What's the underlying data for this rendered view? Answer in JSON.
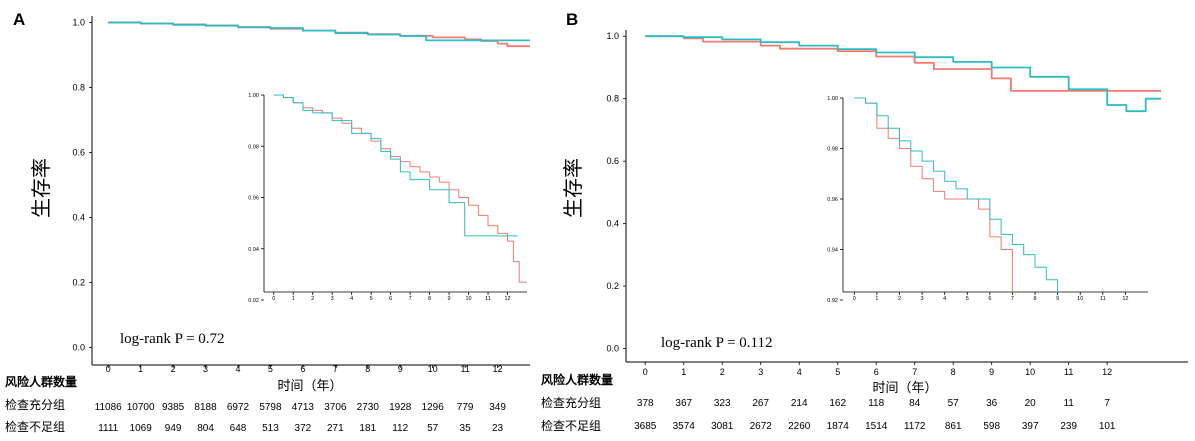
{
  "panels": [
    {
      "letter": "A",
      "y_label": "生存率",
      "x_label": "时间（年）",
      "p_value_text": "log-rank P = 0.72",
      "risk_title": "风险人群数量",
      "risk_labels": [
        "检查充分组",
        "检查不足组"
      ],
      "risk_times": [
        "0",
        "1",
        "2",
        "3",
        "4",
        "5",
        "6",
        "7",
        "8",
        "9",
        "10",
        "11",
        "12"
      ],
      "risk_counts": [
        [
          "11086",
          "10700",
          "9385",
          "8188",
          "6972",
          "5798",
          "4713",
          "3706",
          "2730",
          "1928",
          "1296",
          "779",
          "349"
        ],
        [
          "1111",
          "1069",
          "949",
          "804",
          "648",
          "513",
          "372",
          "271",
          "181",
          "112",
          "57",
          "35",
          "23"
        ]
      ]
    },
    {
      "letter": "B",
      "y_label": "生存率",
      "x_label": "时间（年）",
      "p_value_text": "log-rank P = 0.112",
      "risk_title": "风险人群数量",
      "risk_labels": [
        "检查充分组",
        "检查不足组"
      ],
      "risk_times": [
        "0",
        "1",
        "2",
        "3",
        "4",
        "5",
        "6",
        "7",
        "8",
        "9",
        "10",
        "11",
        "12"
      ],
      "risk_counts": [
        [
          "378",
          "367",
          "323",
          "267",
          "214",
          "162",
          "118",
          "84",
          "57",
          "36",
          "20",
          "11",
          "7"
        ],
        [
          "3685",
          "3574",
          "3081",
          "2672",
          "2260",
          "1874",
          "1514",
          "1172",
          "861",
          "598",
          "397",
          "239",
          "101"
        ]
      ]
    }
  ],
  "colors": {
    "red": "#f07b70",
    "teal": "#2dbcc4"
  },
  "chart_data": [
    {
      "type": "line",
      "step": true,
      "panel": "A main",
      "xlabel": "时间（年）",
      "ylabel": "生存率",
      "xlim": [
        -0.5,
        13
      ],
      "ylim": [
        0,
        1.02
      ],
      "xticks": [
        0,
        1,
        2,
        3,
        4,
        5,
        6,
        7,
        8,
        9,
        10,
        11,
        12
      ],
      "yticks": [
        0.0,
        0.2,
        0.4,
        0.6,
        0.8,
        1.0
      ],
      "ytick_labels": [
        "0.0",
        "0.2",
        "0.4",
        "0.6",
        "0.8",
        "1.0"
      ],
      "annotation": "log-rank P = 0.72",
      "series": [
        {
          "name": "red",
          "color": "#f07b70",
          "x": [
            0,
            1,
            2,
            3,
            4,
            5,
            6,
            7,
            8,
            9,
            10,
            11,
            11.5,
            12,
            12.3,
            13
          ],
          "y": [
            1.0,
            0.997,
            0.994,
            0.991,
            0.986,
            0.981,
            0.975,
            0.969,
            0.964,
            0.959,
            0.954,
            0.948,
            0.943,
            0.935,
            0.927,
            0.927
          ]
        },
        {
          "name": "teal",
          "color": "#2dbcc4",
          "x": [
            0,
            1,
            2,
            3,
            4,
            5,
            6,
            7,
            8,
            9,
            9.8,
            11,
            12,
            13
          ],
          "y": [
            1.0,
            0.997,
            0.993,
            0.99,
            0.985,
            0.983,
            0.975,
            0.967,
            0.963,
            0.958,
            0.945,
            0.945,
            0.945,
            0.945
          ]
        }
      ]
    },
    {
      "type": "line",
      "step": true,
      "panel": "A inset",
      "xlim": [
        -0.5,
        13
      ],
      "ylim": [
        0.92,
        1.0
      ],
      "xticks": [
        0,
        1,
        2,
        3,
        4,
        5,
        6,
        7,
        8,
        9,
        10,
        11,
        12
      ],
      "yticks": [
        0.92,
        0.94,
        0.96,
        0.98,
        1.0
      ],
      "ytick_labels": [
        "0.92",
        "0.94",
        "0.96",
        "0.98",
        "1.00"
      ],
      "series": [
        {
          "name": "red",
          "color": "#f07b70",
          "x": [
            0,
            0.5,
            1,
            1.5,
            2,
            2.5,
            3,
            3.5,
            4,
            4.5,
            5,
            5.5,
            6,
            6.5,
            7,
            7.5,
            8,
            8.5,
            9,
            9.5,
            10,
            10.5,
            11,
            11.5,
            12,
            12.3,
            12.6,
            13
          ],
          "y": [
            1.0,
            0.999,
            0.997,
            0.995,
            0.994,
            0.993,
            0.991,
            0.989,
            0.987,
            0.985,
            0.982,
            0.979,
            0.976,
            0.974,
            0.972,
            0.97,
            0.968,
            0.966,
            0.963,
            0.96,
            0.957,
            0.953,
            0.949,
            0.946,
            0.943,
            0.935,
            0.927,
            0.927
          ]
        },
        {
          "name": "teal",
          "color": "#2dbcc4",
          "x": [
            0,
            0.5,
            1,
            1.5,
            2,
            3,
            4,
            4.5,
            5,
            5.5,
            6,
            6.5,
            7,
            7.5,
            8,
            8.5,
            9,
            9.5,
            9.8,
            10,
            11,
            12,
            12.5
          ],
          "y": [
            1.0,
            0.999,
            0.997,
            0.994,
            0.993,
            0.99,
            0.985,
            0.985,
            0.983,
            0.978,
            0.975,
            0.97,
            0.967,
            0.967,
            0.963,
            0.963,
            0.958,
            0.958,
            0.945,
            0.945,
            0.945,
            0.945,
            0.945
          ]
        }
      ]
    },
    {
      "type": "line",
      "step": true,
      "panel": "B main",
      "xlabel": "时间（年）",
      "ylabel": "生存率",
      "xlim": [
        0,
        13.4
      ],
      "ylim": [
        0,
        1.02
      ],
      "xticks": [
        0,
        1,
        2,
        3,
        4,
        5,
        6,
        7,
        8,
        9,
        10,
        11,
        12
      ],
      "yticks": [
        0.0,
        0.2,
        0.4,
        0.6,
        0.8,
        1.0
      ],
      "ytick_labels": [
        "0.0",
        "0.2",
        "0.4",
        "0.6",
        "0.8",
        "1.0"
      ],
      "annotation": "log-rank P = 0.112",
      "series": [
        {
          "name": "red",
          "color": "#f07b70",
          "x": [
            0,
            1,
            1.5,
            3,
            3.5,
            5,
            6,
            7,
            7.5,
            9,
            9.5,
            13.4
          ],
          "y": [
            1.0,
            0.993,
            0.983,
            0.97,
            0.96,
            0.952,
            0.935,
            0.915,
            0.895,
            0.865,
            0.825,
            0.825
          ]
        },
        {
          "name": "teal",
          "color": "#2dbcc4",
          "x": [
            0,
            1,
            2,
            3,
            4,
            5,
            6,
            7,
            8,
            9,
            10,
            11,
            12,
            12.5,
            13,
            13.4
          ],
          "y": [
            1.0,
            0.997,
            0.99,
            0.981,
            0.97,
            0.959,
            0.948,
            0.933,
            0.918,
            0.9,
            0.87,
            0.83,
            0.78,
            0.76,
            0.8,
            0.8
          ]
        }
      ]
    },
    {
      "type": "line",
      "step": true,
      "panel": "B inset",
      "xlim": [
        -0.5,
        13
      ],
      "ylim": [
        0.92,
        1.0
      ],
      "xticks": [
        0,
        1,
        2,
        3,
        4,
        5,
        6,
        7,
        8,
        9,
        10,
        11,
        12
      ],
      "yticks": [
        0.92,
        0.94,
        0.96,
        0.98,
        1.0
      ],
      "ytick_labels": [
        "0.92",
        "0.94",
        "0.96",
        "0.98",
        "1.00"
      ],
      "series": [
        {
          "name": "red",
          "color": "#f07b70",
          "x": [
            0,
            0.5,
            1,
            1.5,
            2,
            2.5,
            3,
            3.5,
            4,
            4.5,
            5,
            5.5,
            6,
            6.5,
            7
          ],
          "y": [
            1.0,
            0.998,
            0.988,
            0.984,
            0.98,
            0.973,
            0.968,
            0.963,
            0.96,
            0.96,
            0.96,
            0.956,
            0.945,
            0.94,
            0.923
          ]
        },
        {
          "name": "teal",
          "color": "#2dbcc4",
          "x": [
            0,
            0.5,
            1,
            1.5,
            2,
            2.5,
            3,
            3.5,
            4,
            4.5,
            5,
            5.5,
            6,
            6.5,
            7,
            7.5,
            8,
            8.5,
            9
          ],
          "y": [
            1.0,
            0.998,
            0.993,
            0.988,
            0.983,
            0.979,
            0.975,
            0.971,
            0.967,
            0.964,
            0.96,
            0.96,
            0.952,
            0.946,
            0.942,
            0.938,
            0.933,
            0.928,
            0.923
          ]
        }
      ]
    }
  ]
}
